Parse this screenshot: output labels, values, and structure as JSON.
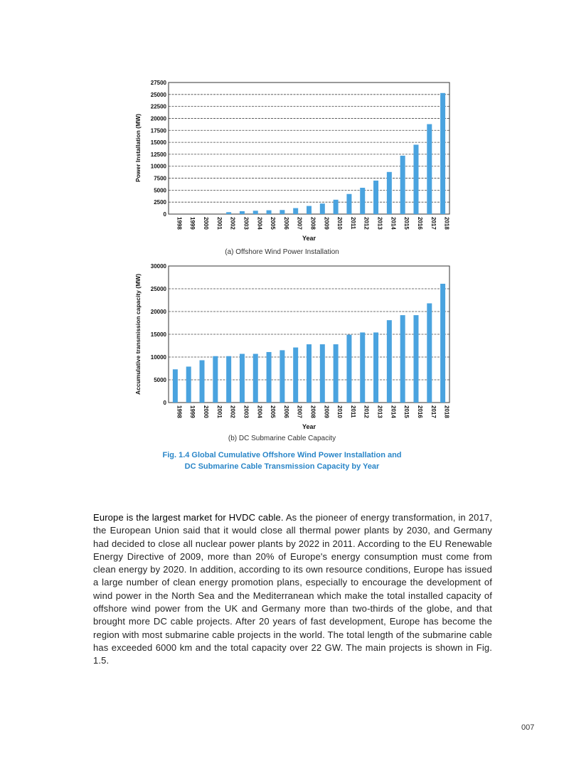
{
  "chart_data": [
    {
      "type": "bar",
      "title": "(a) Offshore Wind Power Installation",
      "xlabel": "Year",
      "ylabel": "Power Installation (MW)",
      "ylim": [
        0,
        27500
      ],
      "yticks": [
        0,
        2500,
        5000,
        7500,
        10000,
        12500,
        15000,
        17500,
        20000,
        22500,
        25000,
        27500
      ],
      "categories": [
        "1998",
        "1999",
        "2000",
        "2001",
        "2002",
        "2003",
        "2004",
        "2005",
        "2006",
        "2007",
        "2008",
        "2009",
        "2010",
        "2011",
        "2012",
        "2013",
        "2014",
        "2015",
        "2016",
        "2017",
        "2018"
      ],
      "values": [
        0,
        0,
        0,
        0,
        400,
        600,
        700,
        800,
        850,
        1250,
        1700,
        2200,
        3000,
        4200,
        5500,
        7000,
        8800,
        12200,
        14500,
        18800,
        25300
      ],
      "color": "#4aa3df",
      "grid": "dashed-horizontal"
    },
    {
      "type": "bar",
      "title": "(b) DC Submarine Cable Capacity",
      "xlabel": "Year",
      "ylabel": "Accumulative transmission capacity (MW)",
      "ylim": [
        0,
        30000
      ],
      "yticks": [
        0,
        5000,
        10000,
        15000,
        20000,
        25000,
        30000
      ],
      "categories": [
        "1998",
        "1999",
        "2000",
        "2001",
        "2002",
        "2003",
        "2004",
        "2005",
        "2006",
        "2007",
        "2008",
        "2009",
        "2010",
        "2011",
        "2012",
        "2013",
        "2014",
        "2015",
        "2016",
        "2017",
        "2018"
      ],
      "values": [
        7300,
        7900,
        9300,
        10200,
        10200,
        10700,
        10700,
        11100,
        11500,
        12100,
        12800,
        12800,
        12800,
        14900,
        15400,
        15400,
        18100,
        19200,
        19200,
        21800,
        26100
      ],
      "color": "#4aa3df",
      "grid": "dashed-horizontal"
    }
  ],
  "figure_caption": {
    "line1": "Fig. 1.4    Global Cumulative Offshore Wind Power Installation and",
    "line2": "DC Submarine Cable Transmission Capacity by Year"
  },
  "body": {
    "lead": "Europe is the largest market for HVDC cable.",
    "text": " As the pioneer of energy transformation, in 2017, the European Union said that it would close all thermal power plants by 2030, and Germany had decided to close all nuclear power plants by 2022 in 2011. According to the EU Renewable Energy Directive of 2009, more than 20% of Europe's energy consumption must come from clean energy by 2020. In addition, according to its own resource conditions, Europe has issued a large number of clean energy promotion plans, especially to encourage the development of wind power in the North Sea and the Mediterranean which make the total installed capacity of offshore wind power from the UK and Germany more than two-thirds of the globe, and that brought more DC cable projects. After 20 years of fast development, Europe has become the region with most submarine cable projects in the world. The total length of the submarine cable has exceeded 6000 km and the total capacity over 22 GW. The main projects is shown in Fig. 1.5."
  },
  "page_number": "007"
}
